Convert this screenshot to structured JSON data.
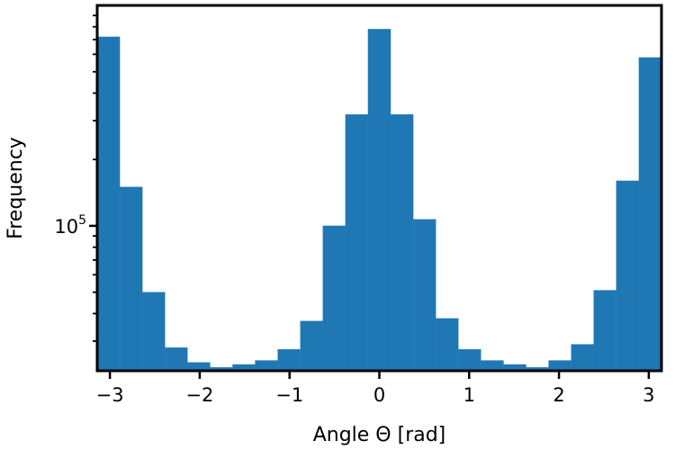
{
  "chart_data": {
    "type": "bar",
    "title": "",
    "xlabel": "Angle Θ [rad]",
    "ylabel": "Frequency",
    "yscale": "log",
    "xlim": [
      -3.14159,
      3.14159
    ],
    "ylim": [
      22000,
      1000000
    ],
    "grid": false,
    "bar_color": "#1f77b4",
    "bin_edges": [
      -3.14159,
      -2.89026,
      -2.63894,
      -2.38761,
      -2.13628,
      -1.88496,
      -1.63363,
      -1.3823,
      -1.13097,
      -0.87965,
      -0.62832,
      -0.37699,
      -0.12566,
      0.12566,
      0.37699,
      0.62832,
      0.87965,
      1.13097,
      1.3823,
      1.63363,
      1.88496,
      2.13628,
      2.38761,
      2.63894,
      2.89026,
      3.14159
    ],
    "values": [
      720000,
      150000,
      50000,
      28000,
      24000,
      22800,
      23500,
      24500,
      27500,
      37000,
      100000,
      320000,
      780000,
      320000,
      107000,
      38000,
      27500,
      24500,
      23500,
      22800,
      24500,
      29000,
      51000,
      160000,
      580000
    ],
    "x_ticks": [
      {
        "value": -3,
        "label": "−3"
      },
      {
        "value": -2,
        "label": "−2"
      },
      {
        "value": -1,
        "label": "−1"
      },
      {
        "value": 0,
        "label": "0"
      },
      {
        "value": 1,
        "label": "1"
      },
      {
        "value": 2,
        "label": "2"
      },
      {
        "value": 3,
        "label": "3"
      }
    ],
    "y_major_ticks": [
      {
        "value": 100000,
        "base": "10",
        "exponent": "5"
      }
    ],
    "y_minor_ticks": [
      30000,
      40000,
      50000,
      60000,
      70000,
      80000,
      90000,
      200000,
      300000,
      400000,
      500000,
      600000,
      700000,
      800000,
      900000
    ]
  }
}
